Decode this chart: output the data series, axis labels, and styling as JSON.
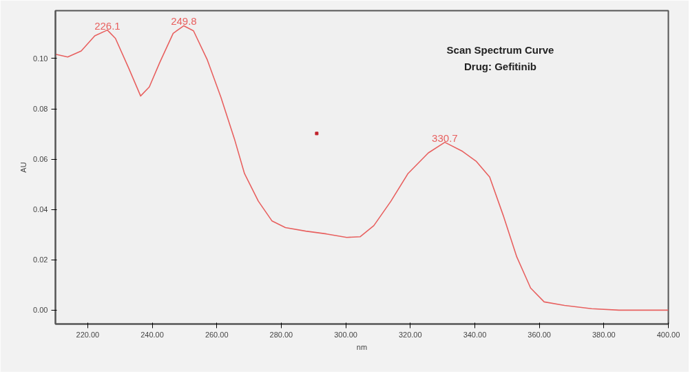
{
  "chart_data": {
    "type": "line",
    "title": "Scan Spectrum Curve",
    "subtitle": "Drug: Gefitinib",
    "xlabel": "nm",
    "ylabel": "AU",
    "xlim": [
      210,
      400
    ],
    "ylim": [
      -0.0055,
      0.119
    ],
    "xticks": [
      {
        "value": 220,
        "label": "220.00"
      },
      {
        "value": 240,
        "label": "240.00"
      },
      {
        "value": 260,
        "label": "260.00"
      },
      {
        "value": 280,
        "label": "280.00"
      },
      {
        "value": 300,
        "label": "300.00"
      },
      {
        "value": 320,
        "label": "320.00"
      },
      {
        "value": 340,
        "label": "340.00"
      },
      {
        "value": 360,
        "label": "360.00"
      },
      {
        "value": 380,
        "label": "380.00"
      },
      {
        "value": 400,
        "label": "400.00"
      }
    ],
    "yticks": [
      {
        "value": 0,
        "label": "0.00"
      },
      {
        "value": 0.02,
        "label": "0.02"
      },
      {
        "value": 0.04,
        "label": "0.04"
      },
      {
        "value": 0.06,
        "label": "0.06"
      },
      {
        "value": 0.08,
        "label": "0.08"
      },
      {
        "value": 0.1,
        "label": "0.10"
      }
    ],
    "grid": false,
    "marker": "none",
    "line_style": "solid",
    "series": [
      {
        "color": "#e8605f",
        "x": [
          210,
          213.8,
          218,
          222.2,
          226.1,
          228.6,
          232.8,
          236.4,
          239.1,
          242.3,
          246.5,
          249.8,
          252.8,
          257,
          261.3,
          265.5,
          268.6,
          272.9,
          277.1,
          281.3,
          287.6,
          294,
          300.3,
          304.5,
          308.7,
          314,
          319.3,
          325.6,
          330.7,
          336.2,
          340.4,
          344.6,
          348.8,
          353,
          357.3,
          361.5,
          367.8,
          376.2,
          384.7,
          400
        ],
        "values": [
          0.1017,
          0.1006,
          0.103,
          0.109,
          0.1113,
          0.108,
          0.0959,
          0.0851,
          0.0887,
          0.0983,
          0.11,
          0.113,
          0.111,
          0.0997,
          0.0846,
          0.068,
          0.0543,
          0.0433,
          0.0355,
          0.0328,
          0.0314,
          0.0303,
          0.0289,
          0.0292,
          0.0336,
          0.0433,
          0.0543,
          0.0625,
          0.0667,
          0.0631,
          0.0592,
          0.0529,
          0.0377,
          0.0212,
          0.0088,
          0.0033,
          0.0019,
          0.0006,
          0.0,
          0.0
        ]
      },
      {
        "type": "scatter",
        "color": "#c0202a",
        "marker": "square",
        "x": [
          291
        ],
        "values": [
          0.0702
        ]
      }
    ],
    "annotations": [
      {
        "text": "226.1",
        "x": 226.1,
        "y": 0.1113
      },
      {
        "text": "249.8",
        "x": 249.8,
        "y": 0.113
      },
      {
        "text": "330.7",
        "x": 330.7,
        "y": 0.0667
      }
    ]
  }
}
